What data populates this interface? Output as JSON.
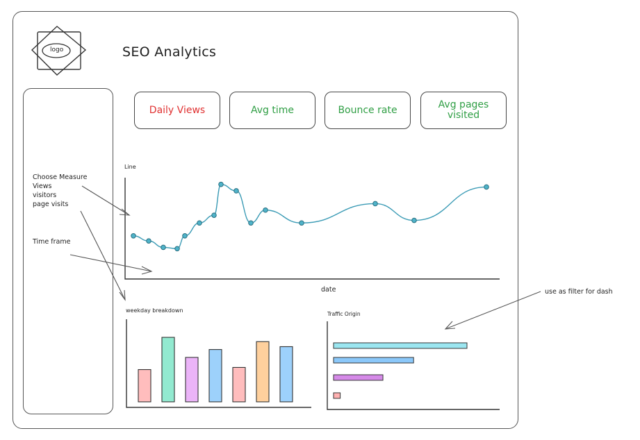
{
  "header": {
    "logo_text": "logo",
    "title": "SEO Analytics"
  },
  "kpi_cards": [
    {
      "label": "Daily Views",
      "color": "#e03131"
    },
    {
      "label": "Avg time",
      "color": "#2f9e44"
    },
    {
      "label": "Bounce rate",
      "color": "#2f9e44"
    },
    {
      "label": "Avg pages visited",
      "color": "#2f9e44"
    }
  ],
  "sidebar": {
    "measure_lines": [
      "Choose Measure",
      "Views",
      "visitors",
      "page visits"
    ],
    "time_frame": "Time frame"
  },
  "annotation": "use as filter for dash",
  "colors": {
    "line": "#3b9bb5",
    "arrow": "#555555"
  },
  "chart_data": [
    {
      "type": "line",
      "title": "Line",
      "xlabel": "date",
      "ylabel": "",
      "values": [
        3.0,
        2.6,
        2.1,
        2.0,
        3.0,
        4.0,
        4.6,
        7.0,
        6.5,
        4.0,
        5.0,
        4.0,
        5.5,
        4.2,
        6.8
      ]
    },
    {
      "type": "bar",
      "title": "weekday breakdown",
      "xlabel": "",
      "ylabel": "",
      "values": [
        45,
        90,
        62,
        73,
        48,
        84,
        77
      ],
      "colors": [
        "#ff8787",
        "#38d9a9",
        "#da77f2",
        "#4dabf7",
        "#ff8787",
        "#ffa94d",
        "#4dabf7"
      ]
    },
    {
      "type": "bar",
      "orientation": "horizontal",
      "title": "Traffic Origin",
      "xlabel": "",
      "ylabel": "",
      "values": [
        100,
        60,
        37,
        5
      ],
      "colors": [
        "#66d9e8",
        "#4dabf7",
        "#be4bdb",
        "#ff8787"
      ]
    }
  ]
}
